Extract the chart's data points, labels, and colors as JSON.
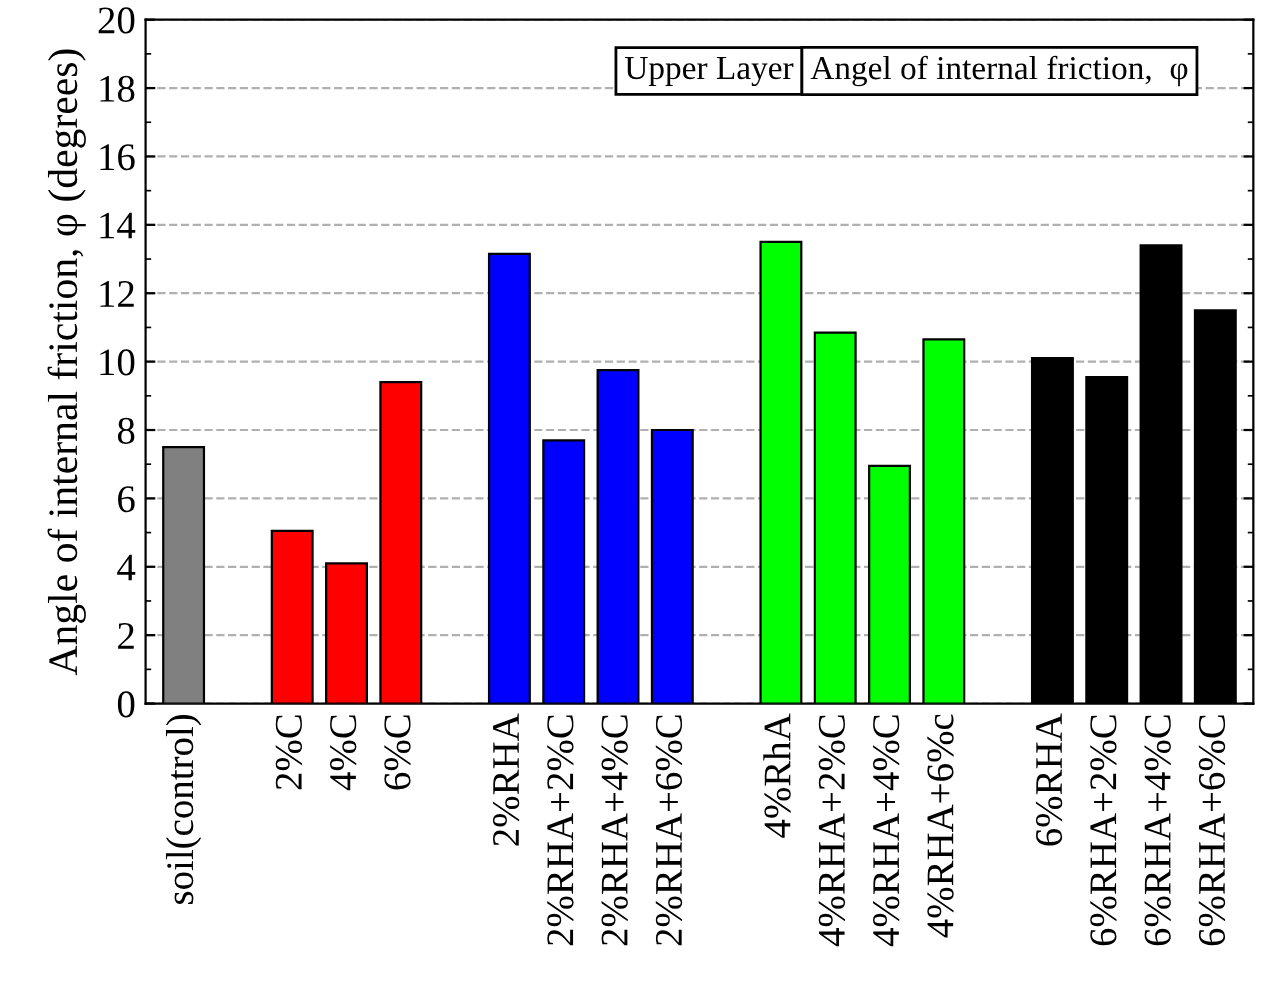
{
  "chart_data": {
    "type": "bar",
    "ylabel": "Angle of internal friction, φ (degrees)",
    "categories": [
      "soil(control)",
      null,
      "2%C",
      "4%C",
      "6%C",
      null,
      "2%RHA",
      "2%RHA+2%C",
      "2%RHA+4%C",
      "2%RHA+6%C",
      null,
      "4%RhA",
      "4%RHA+2%C",
      "4%RHA+4%C",
      "4%RHA+6%c",
      null,
      "6%RHA",
      "6%RHA+2%C",
      "6%RHA+4%C",
      "6%RHA+6%C"
    ],
    "values": [
      7.5,
      null,
      5.05,
      4.1,
      9.4,
      null,
      13.15,
      7.7,
      9.75,
      8.0,
      null,
      13.5,
      10.85,
      6.95,
      10.65,
      null,
      10.1,
      9.55,
      13.4,
      11.5
    ],
    "colors": [
      "#808080",
      null,
      "#ff0000",
      "#ff0000",
      "#ff0000",
      null,
      "#0000ff",
      "#0000ff",
      "#0000ff",
      "#0000ff",
      null,
      "#00ff00",
      "#00ff00",
      "#00ff00",
      "#00ff00",
      null,
      "#000000",
      "#000000",
      "#000000",
      "#000000"
    ],
    "ylim": [
      0,
      20
    ],
    "yticks": [
      0,
      2,
      4,
      6,
      8,
      10,
      12,
      14,
      16,
      18,
      20
    ],
    "grid": "y",
    "annotations": [
      "Upper Layer",
      "Angel of internal friction,  φ"
    ]
  }
}
